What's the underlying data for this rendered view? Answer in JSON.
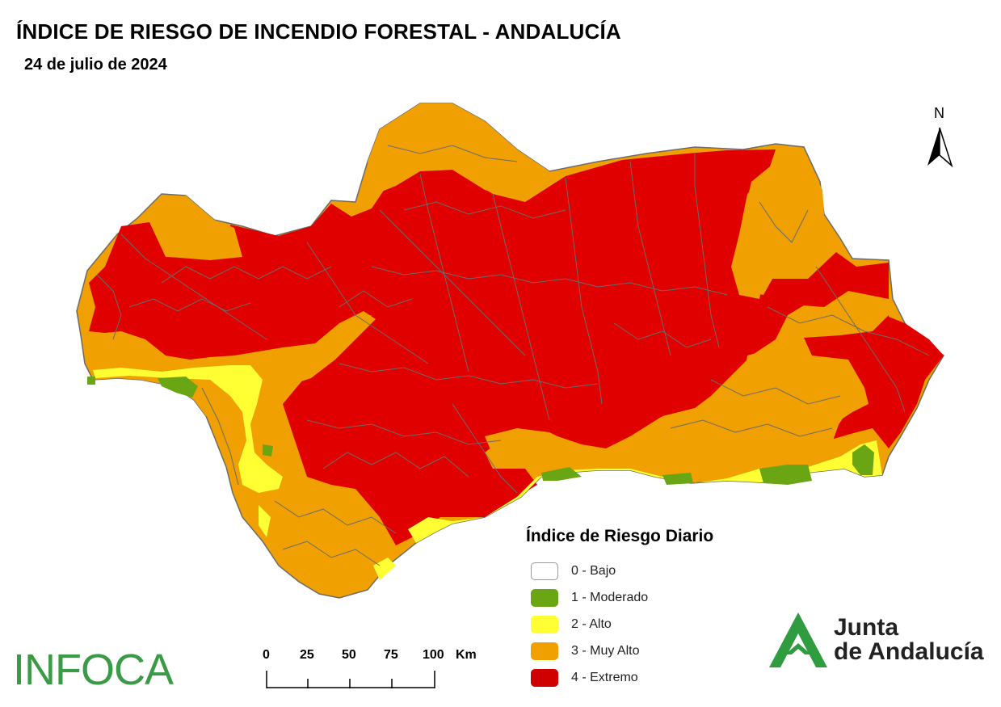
{
  "title": "ÍNDICE DE RIESGO DE INCENDIO FORESTAL - ANDALUCÍA",
  "date": "24 de julio de 2024",
  "legend": {
    "title": "Índice de Riesgo Diario",
    "items": [
      {
        "label": "0 - Bajo",
        "color": "#ffffff"
      },
      {
        "label": "1 - Moderado",
        "color": "#6aa514"
      },
      {
        "label": "2 - Alto",
        "color": "#ffff33"
      },
      {
        "label": "3 - Muy Alto",
        "color": "#f0a000"
      },
      {
        "label": "4 - Extremo",
        "color": "#e00000"
      }
    ]
  },
  "scale_bar": {
    "ticks": [
      "0",
      "25",
      "50",
      "75",
      "100"
    ],
    "unit": "Km"
  },
  "north_arrow": {
    "label": "N",
    "icon": "north-arrow-icon"
  },
  "logos": {
    "infoca": "INFOCA",
    "junta_line1": "Junta",
    "junta_line2": "de Andalucía"
  },
  "map_colors": {
    "moderado": "#6aa514",
    "alto": "#ffff33",
    "muy_alto": "#f0a000",
    "extremo": "#e00000",
    "borders": "#6b6b6b"
  }
}
